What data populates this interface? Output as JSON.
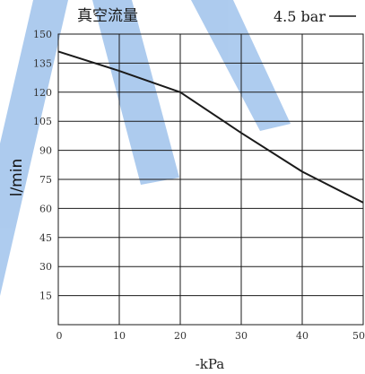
{
  "chart_data": {
    "type": "line",
    "title": "真空流量",
    "legend_label": "4.5 bar",
    "legend_placement": "top-right",
    "xlabel": "-kPa",
    "ylabel": "l/min",
    "xlim": [
      0,
      50
    ],
    "ylim": [
      0,
      150
    ],
    "x_ticks": [
      "0",
      "10",
      "20",
      "30",
      "40",
      "50"
    ],
    "y_ticks": [
      "15",
      "30",
      "45",
      "60",
      "75",
      "90",
      "105",
      "120",
      "135",
      "150"
    ],
    "x_tick_values": [
      0,
      10,
      20,
      30,
      40,
      50
    ],
    "y_tick_values": [
      15,
      30,
      45,
      60,
      75,
      90,
      105,
      120,
      135,
      150
    ],
    "grid": true,
    "series": [
      {
        "name": "4.5 bar",
        "x": [
          0,
          10,
          20,
          30,
          40,
          50
        ],
        "y": [
          141,
          131,
          120,
          99,
          79,
          63
        ]
      }
    ],
    "colors": {
      "line": "#1a1a1a",
      "grid": "#1a1a1a",
      "watermark": "#3d86d8"
    }
  }
}
